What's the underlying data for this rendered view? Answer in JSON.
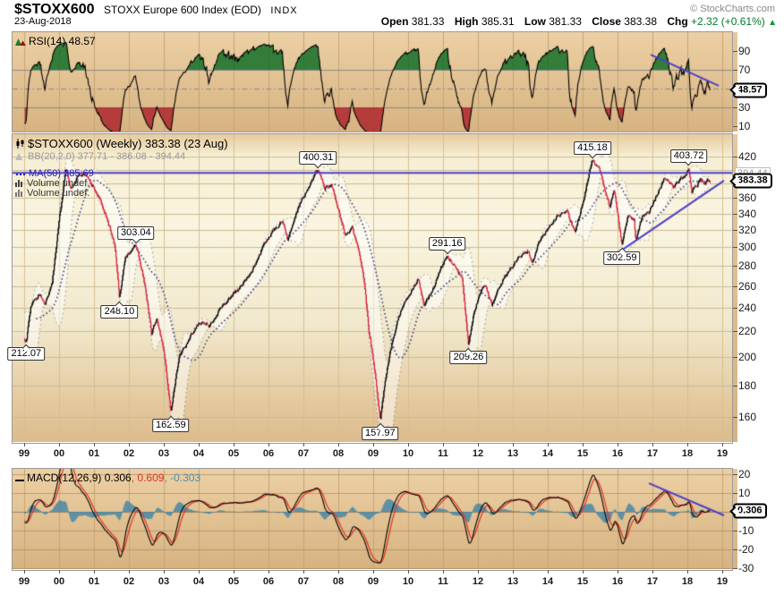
{
  "header": {
    "symbol": "$STOXX600",
    "name": "STOXX Europe 600 Index (EOD)",
    "exchange": "INDX",
    "credit": "© StockCharts.com",
    "date": "23-Aug-2018",
    "open_label": "Open",
    "open": "381.33",
    "high_label": "High",
    "high": "385.31",
    "low_label": "Low",
    "low": "381.33",
    "close_label": "Close",
    "close": "383.38",
    "chg_label": "Chg",
    "chg": "+2.32 (+0.61%)",
    "chg_arrow": "▲"
  },
  "rsi_panel": {
    "legend": "RSI(14) 48.57",
    "callout": "48.57",
    "axis_ticks": [
      90,
      70,
      30,
      10
    ],
    "overbought": 70,
    "oversold": 30,
    "midline": 50
  },
  "main_panel": {
    "legend_symbol": "$STOXX600 (Weekly) 383.38 (23 Aug)",
    "legend_bb": "BB(20,2.0) 377.71 - 386.08 - 394.44",
    "legend_ma": "MA(50) 385.69",
    "legend_vol1": "Volume undef.",
    "legend_vol2": "Volume undef.",
    "callout": "383.38",
    "bb_upper_label": "394.44",
    "axis_ticks": [
      420,
      360,
      340,
      320,
      300,
      280,
      260,
      240,
      220,
      200,
      180,
      160
    ],
    "annotations": [
      {
        "text": "212.07",
        "year": 1999.06,
        "price": 212.07,
        "place": "below"
      },
      {
        "text": "248.10",
        "year": 2001.73,
        "price": 248.1,
        "place": "below"
      },
      {
        "text": "303.04",
        "year": 2002.2,
        "price": 303.04,
        "place": "above"
      },
      {
        "text": "162.59",
        "year": 2003.2,
        "price": 162.59,
        "place": "below"
      },
      {
        "text": "400.31",
        "year": 2007.42,
        "price": 400.31,
        "place": "above"
      },
      {
        "text": "157.97",
        "year": 2009.2,
        "price": 157.97,
        "place": "below"
      },
      {
        "text": "291.16",
        "year": 2011.12,
        "price": 291.16,
        "place": "above"
      },
      {
        "text": "209.26",
        "year": 2011.73,
        "price": 209.26,
        "place": "below"
      },
      {
        "text": "415.18",
        "year": 2015.28,
        "price": 415.18,
        "place": "above"
      },
      {
        "text": "302.59",
        "year": 2016.12,
        "price": 302.59,
        "place": "below"
      },
      {
        "text": "403.72",
        "year": 2018.04,
        "price": 403.72,
        "place": "above"
      }
    ]
  },
  "macd_panel": {
    "legend_macd": "MACD(12,26,9) 0.306",
    "legend_signal": ", 0.609",
    "legend_hist": ", -0.303",
    "callout": "0.306",
    "axis_ticks": [
      20,
      10,
      -10,
      -20,
      -30
    ]
  },
  "x_axis": {
    "labels": [
      "99",
      "00",
      "01",
      "02",
      "03",
      "04",
      "05",
      "06",
      "07",
      "08",
      "09",
      "10",
      "11",
      "12",
      "13",
      "14",
      "15",
      "16",
      "17",
      "18",
      "19"
    ]
  },
  "chart_data": {
    "type": "candlestick",
    "timeframe": "weekly",
    "title": "$STOXX600 (Weekly)",
    "x_range_years": [
      1999,
      2019.3
    ],
    "price_axis": {
      "scale": "log",
      "ticks": [
        160,
        180,
        200,
        220,
        240,
        260,
        280,
        300,
        320,
        340,
        360,
        380,
        400,
        420
      ]
    },
    "rsi_axis": {
      "ticks": [
        10,
        30,
        50,
        70,
        90
      ]
    },
    "macd_axis": {
      "ticks": [
        -30,
        -20,
        -10,
        0,
        10,
        20
      ]
    },
    "last_values": {
      "rsi": 48.57,
      "bb_lower": 377.71,
      "bb_mid": 386.08,
      "bb_upper": 394.44,
      "ma50": 385.69,
      "macd": 0.306,
      "macd_signal": 0.609,
      "macd_hist": -0.303,
      "open": 381.33,
      "high": 385.31,
      "low": 381.33,
      "close": 383.38,
      "chg": 2.32,
      "chg_pct": 0.61
    },
    "indicators": {
      "rsi_period": 14,
      "bb_period": 20,
      "bb_stdev": 2.0,
      "ma_period": 50,
      "macd_params": [
        12,
        26,
        9
      ]
    },
    "price_keypoints": [
      [
        1998.4,
        250
      ],
      [
        1998.6,
        222
      ],
      [
        1998.8,
        232
      ],
      [
        1999.0,
        213
      ],
      [
        1999.06,
        212.07
      ],
      [
        1999.2,
        242
      ],
      [
        1999.45,
        252
      ],
      [
        1999.6,
        243
      ],
      [
        1999.8,
        262
      ],
      [
        2000.0,
        330
      ],
      [
        2000.2,
        400
      ],
      [
        2000.35,
        372
      ],
      [
        2000.55,
        392
      ],
      [
        2000.75,
        395
      ],
      [
        2000.95,
        378
      ],
      [
        2001.15,
        362
      ],
      [
        2001.4,
        330
      ],
      [
        2001.6,
        302
      ],
      [
        2001.73,
        248.1
      ],
      [
        2001.9,
        288
      ],
      [
        2002.05,
        295
      ],
      [
        2002.2,
        303.04
      ],
      [
        2002.45,
        262
      ],
      [
        2002.65,
        218
      ],
      [
        2002.8,
        232
      ],
      [
        2003.0,
        205
      ],
      [
        2003.2,
        162.59
      ],
      [
        2003.45,
        200
      ],
      [
        2003.7,
        212
      ],
      [
        2004.0,
        228
      ],
      [
        2004.3,
        224
      ],
      [
        2004.6,
        238
      ],
      [
        2005.0,
        252
      ],
      [
        2005.5,
        272
      ],
      [
        2006.0,
        312
      ],
      [
        2006.4,
        330
      ],
      [
        2006.55,
        308
      ],
      [
        2006.9,
        352
      ],
      [
        2007.2,
        380
      ],
      [
        2007.42,
        400.31
      ],
      [
        2007.6,
        373
      ],
      [
        2007.8,
        378
      ],
      [
        2008.0,
        345
      ],
      [
        2008.2,
        312
      ],
      [
        2008.4,
        322
      ],
      [
        2008.6,
        295
      ],
      [
        2008.75,
        262
      ],
      [
        2008.87,
        222
      ],
      [
        2009.0,
        198
      ],
      [
        2009.2,
        157.97
      ],
      [
        2009.4,
        192
      ],
      [
        2009.6,
        218
      ],
      [
        2009.8,
        238
      ],
      [
        2010.0,
        250
      ],
      [
        2010.3,
        266
      ],
      [
        2010.45,
        242
      ],
      [
        2010.7,
        256
      ],
      [
        2011.0,
        282
      ],
      [
        2011.12,
        291.16
      ],
      [
        2011.35,
        278
      ],
      [
        2011.55,
        268
      ],
      [
        2011.6,
        250
      ],
      [
        2011.73,
        209.26
      ],
      [
        2011.85,
        230
      ],
      [
        2012.0,
        248
      ],
      [
        2012.2,
        262
      ],
      [
        2012.4,
        242
      ],
      [
        2012.6,
        258
      ],
      [
        2012.9,
        275
      ],
      [
        2013.2,
        290
      ],
      [
        2013.45,
        296
      ],
      [
        2013.55,
        284
      ],
      [
        2013.8,
        310
      ],
      [
        2014.0,
        322
      ],
      [
        2014.3,
        338
      ],
      [
        2014.55,
        342
      ],
      [
        2014.78,
        318
      ],
      [
        2015.0,
        352
      ],
      [
        2015.28,
        415.18
      ],
      [
        2015.5,
        398
      ],
      [
        2015.63,
        372
      ],
      [
        2015.78,
        348
      ],
      [
        2015.9,
        372
      ],
      [
        2016.0,
        342
      ],
      [
        2016.12,
        302.59
      ],
      [
        2016.3,
        338
      ],
      [
        2016.48,
        330
      ],
      [
        2016.52,
        308
      ],
      [
        2016.7,
        336
      ],
      [
        2016.9,
        342
      ],
      [
        2017.1,
        362
      ],
      [
        2017.35,
        388
      ],
      [
        2017.6,
        376
      ],
      [
        2017.8,
        386
      ],
      [
        2017.95,
        390
      ],
      [
        2018.04,
        403.72
      ],
      [
        2018.13,
        368
      ],
      [
        2018.25,
        376
      ],
      [
        2018.38,
        386
      ],
      [
        2018.5,
        379
      ],
      [
        2018.58,
        386
      ],
      [
        2018.64,
        383.38
      ]
    ],
    "trendlines": {
      "price_horizontal": 395.0,
      "price_rising": [
        [
          2015.62,
          284
        ],
        [
          2019.05,
          384
        ]
      ],
      "rsi_falling": [
        [
          2016.95,
          86
        ],
        [
          2018.9,
          53
        ]
      ],
      "macd_falling": [
        [
          2016.9,
          15.2
        ],
        [
          2019.05,
          -1.9
        ]
      ]
    },
    "colors": {
      "candle_up": "#000000",
      "candle_down": "#d81e3c",
      "ma50": "#33337f",
      "bb_fill": "rgba(255,255,255,0.5)",
      "bb_edge": "rgba(120,120,120,0.65)",
      "trendline": "#4e3fc8",
      "rsi_line": "#000000",
      "rsi_over_fill": "rgba(20,110,40,0.85)",
      "rsi_under_fill": "rgba(170,30,40,0.8)",
      "macd_line": "#000000",
      "macd_signal": "#e33022",
      "macd_hist": "#3d84a8",
      "panel_grid": "#c7a476",
      "main_grid_h": "#c9bb97",
      "main_grid_v": "#d5bf94"
    }
  }
}
